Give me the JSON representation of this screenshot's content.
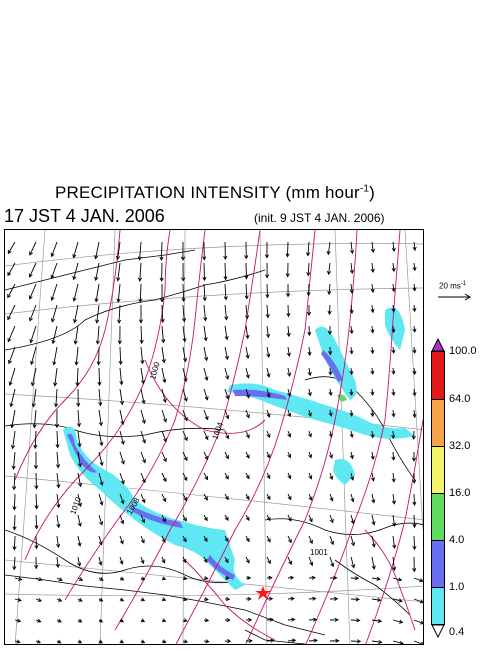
{
  "title": {
    "main": "PRECIPITATION INTENSITY (mm hour",
    "exponent": "-1",
    "close": ")"
  },
  "valid_time": "17 JST 4 JAN. 2006",
  "init_time": "(init. 9 JST 4 JAN. 2006)",
  "wind_scale": {
    "value": "20 ms",
    "exponent": "-1"
  },
  "colorbar": {
    "labels": [
      "100.0",
      "64.0",
      "32.0",
      "16.0",
      "4.0",
      "1.0",
      "0.4"
    ],
    "colors": {
      "above_100": "#b02ccf",
      "64_100": "#e41a1a",
      "32_64": "#f5a24a",
      "16_32": "#f3f36a",
      "4_16": "#5fdc5f",
      "1_4": "#6a6ef0",
      "04_1": "#5fe8f3"
    }
  },
  "map": {
    "pressure_labels": [
      "1000",
      "1004",
      "1010",
      "1008",
      "1001"
    ],
    "contour_color": "#c8146c",
    "marker": {
      "icon": "red-star-icon",
      "color": "#ff1a1a"
    }
  }
}
